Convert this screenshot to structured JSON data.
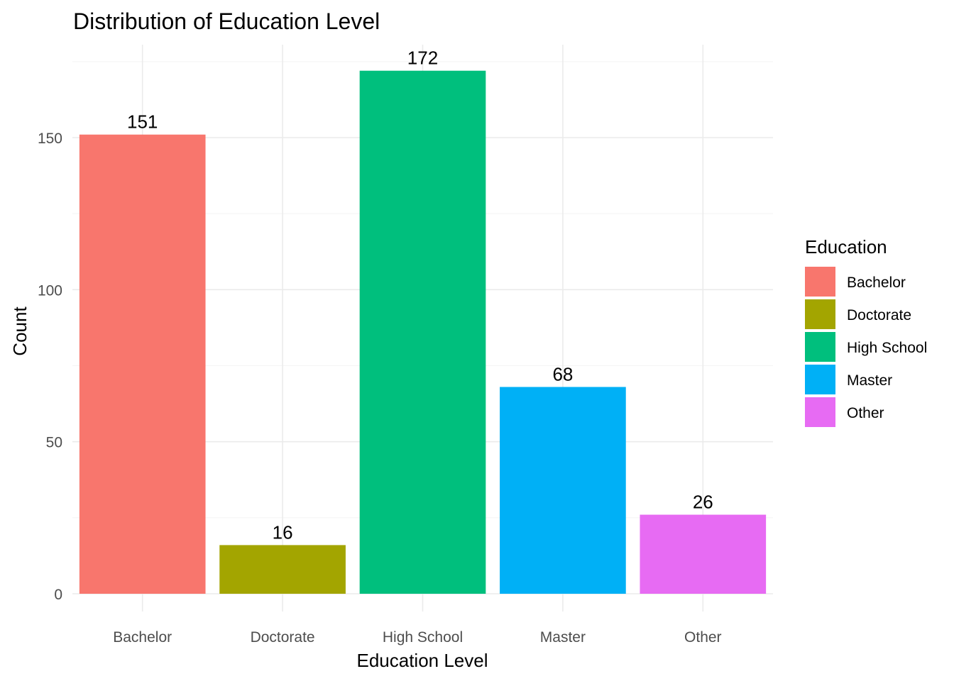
{
  "chart_data": {
    "type": "bar",
    "title": "Distribution of Education Level",
    "xlabel": "Education Level",
    "ylabel": "Count",
    "categories": [
      "Bachelor",
      "Doctorate",
      "High School",
      "Master",
      "Other"
    ],
    "values": [
      151,
      16,
      172,
      68,
      26
    ],
    "data_labels": [
      "151",
      "16",
      "172",
      "68",
      "26"
    ],
    "colors": [
      "#F8766D",
      "#A3A500",
      "#00BF7D",
      "#00B0F6",
      "#E76BF3"
    ],
    "ylim": [
      0,
      180
    ],
    "yticks": [
      0,
      50,
      100,
      150
    ],
    "ytick_labels": [
      "0",
      "50",
      "100",
      "150"
    ],
    "grid": true,
    "legend": {
      "title": "Education",
      "placement": "right",
      "entries": [
        "Bachelor",
        "Doctorate",
        "High School",
        "Master",
        "Other"
      ]
    }
  }
}
